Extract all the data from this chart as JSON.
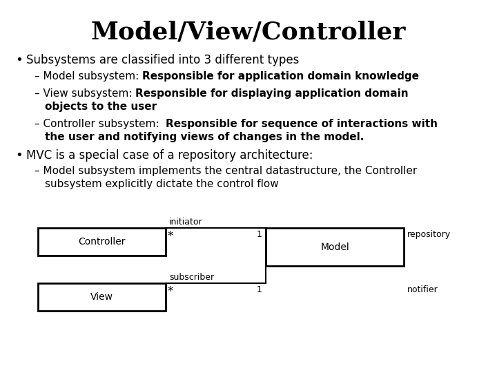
{
  "title": "Model/View/Controller",
  "bg_color": "#ffffff",
  "text_color": "#000000",
  "bullet1": "Subsystems are classified into 3 different types",
  "bullet2": "MVC is a special case of a repository architecture:",
  "sub1_normal": "– Model subsystem: ",
  "sub1_bold": "Responsible for application domain knowledge",
  "sub2_normal": "– View subsystem: ",
  "sub2_bold": "Responsible for displaying application domain",
  "sub2_bold2": "objects to the user",
  "sub3_normal": "– Controller subsystem:  ",
  "sub3_bold": "Responsible for sequence of interactions with",
  "sub3_bold2": "the user and notifying views of changes in the model.",
  "sub4_line1": "– Model subsystem implements the central datastructure, the Controller",
  "sub4_line2": "subsystem explicitly dictate the control flow",
  "ctrl_label": "Controller",
  "model_label": "Model",
  "view_label": "View",
  "initiator": "initiator",
  "repository": "repository",
  "subscriber": "subscriber",
  "notifier": "notifier"
}
